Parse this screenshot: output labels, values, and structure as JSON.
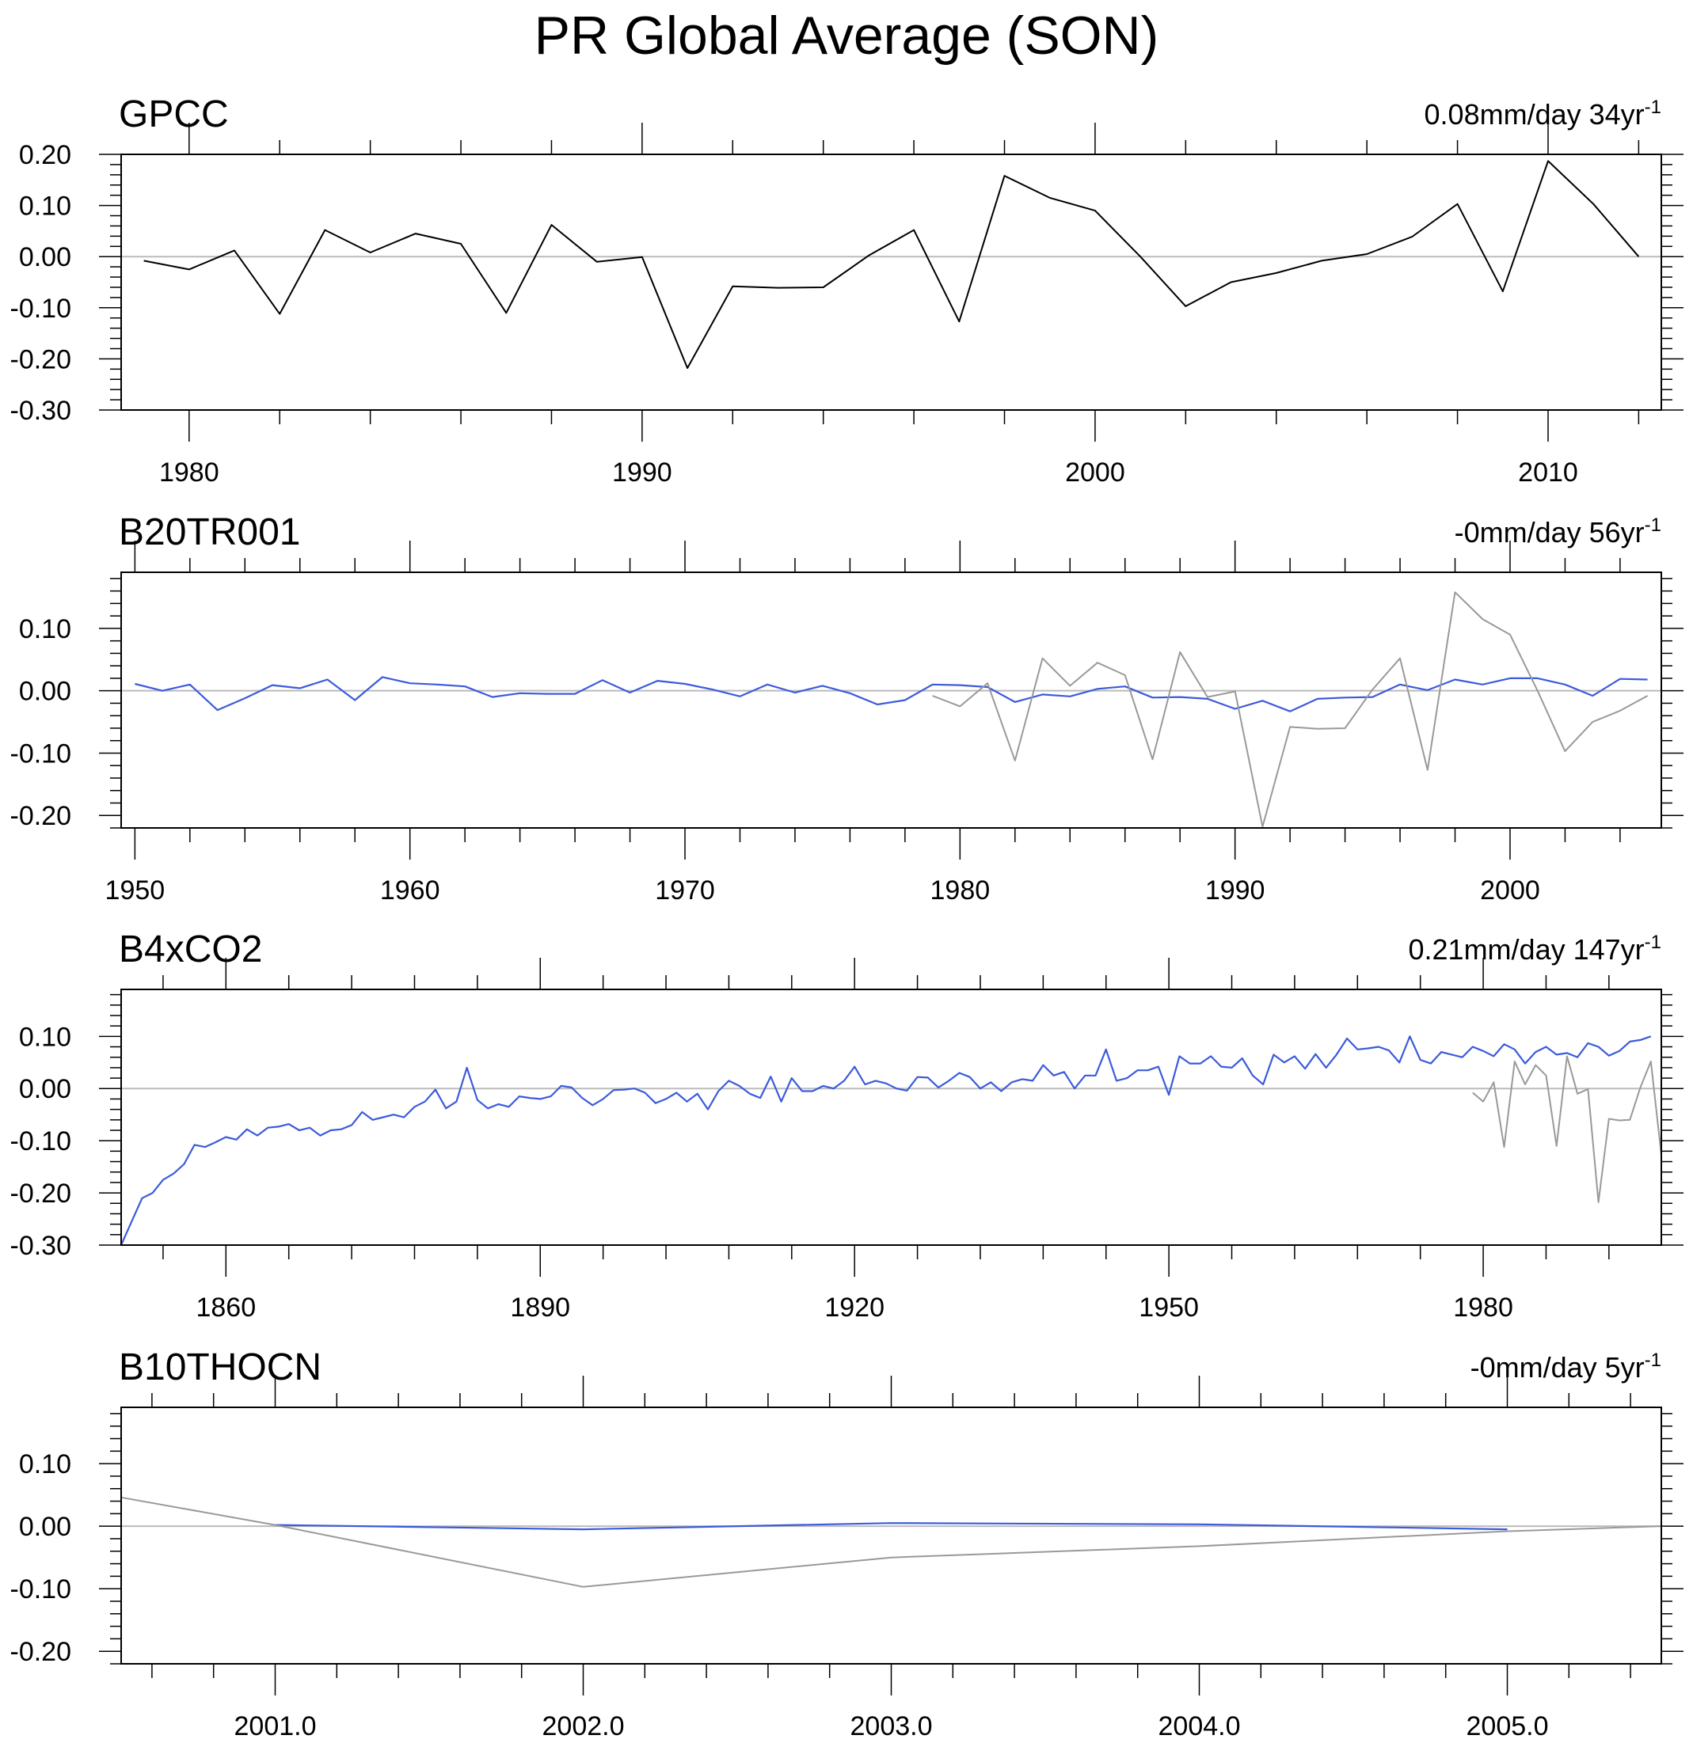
{
  "title": "PR Global Average (SON)",
  "colors": {
    "obs": "#000000",
    "obs_overlay": "#999999",
    "model": "#3b5bdb",
    "zero_line": "#bbbbbb",
    "frame": "#000000"
  },
  "chart_data": [
    {
      "type": "line",
      "title": "GPCC",
      "trend_value": "0.08mm/day",
      "trend_period": "34yr",
      "trend_exponent": "-1",
      "xlim": [
        1978.5,
        2012.5
      ],
      "ylim": [
        -0.3,
        0.2
      ],
      "yticks": [
        -0.3,
        -0.2,
        -0.1,
        0.0,
        0.1,
        0.2
      ],
      "ytick_labels": [
        "-0.30",
        "-0.20",
        "-0.10",
        "0.00",
        "0.10",
        "0.20"
      ],
      "xticks_major": [
        1980,
        1990,
        2000,
        2010
      ],
      "xtick_labels": [
        "1980",
        "1990",
        "2000",
        "2010"
      ],
      "series": [
        {
          "role": "obs",
          "x_start": 1979,
          "values": [
            -0.008,
            -0.025,
            0.012,
            -0.112,
            0.052,
            0.008,
            0.045,
            0.025,
            -0.11,
            0.062,
            -0.01,
            -0.001,
            -0.218,
            -0.058,
            -0.061,
            -0.06,
            0.002,
            0.052,
            -0.127,
            0.158,
            0.115,
            0.09,
            0.0,
            -0.097,
            -0.05,
            -0.032,
            -0.008,
            0.005,
            0.039,
            0.103,
            -0.068,
            0.187,
            0.103,
            0.0
          ]
        }
      ]
    },
    {
      "type": "line",
      "title": "B20TR001",
      "trend_value": "-0mm/day",
      "trend_period": "56yr",
      "trend_exponent": "-1",
      "xlim": [
        1949.5,
        2005.5
      ],
      "ylim": [
        -0.22,
        0.19
      ],
      "yticks": [
        -0.2,
        -0.1,
        0.0,
        0.1
      ],
      "ytick_labels": [
        "-0.20",
        "-0.10",
        "0.00",
        "0.10"
      ],
      "xticks_major": [
        1950,
        1960,
        1970,
        1980,
        1990,
        2000
      ],
      "xtick_labels": [
        "1950",
        "1960",
        "1970",
        "1980",
        "1990",
        "2000"
      ],
      "series": [
        {
          "role": "model",
          "x_start": 1950,
          "values": [
            0.011,
            0.0,
            0.01,
            -0.031,
            -0.012,
            0.009,
            0.004,
            0.018,
            -0.015,
            0.022,
            0.012,
            0.01,
            0.007,
            -0.01,
            -0.004,
            -0.005,
            -0.005,
            0.017,
            -0.003,
            0.016,
            0.011,
            0.002,
            -0.009,
            0.01,
            -0.003,
            0.008,
            -0.004,
            -0.022,
            -0.015,
            0.01,
            0.009,
            0.006,
            -0.018,
            -0.006,
            -0.009,
            0.003,
            0.007,
            -0.011,
            -0.01,
            -0.013,
            -0.029,
            -0.016,
            -0.033,
            -0.013,
            -0.011,
            -0.01,
            0.01,
            0.001,
            0.018,
            0.01,
            0.02,
            0.02,
            0.01,
            -0.008,
            0.019,
            0.018
          ]
        },
        {
          "role": "obs_overlay",
          "x_start": 1979,
          "values": [
            -0.008,
            -0.025,
            0.012,
            -0.112,
            0.052,
            0.008,
            0.045,
            0.025,
            -0.11,
            0.062,
            -0.01,
            -0.001,
            -0.218,
            -0.058,
            -0.061,
            -0.06,
            0.002,
            0.052,
            -0.127,
            0.158,
            0.115,
            0.09,
            0.0,
            -0.097,
            -0.05,
            -0.032,
            -0.008,
            0.005
          ]
        }
      ]
    },
    {
      "type": "line",
      "title": "B4xCO2",
      "trend_value": "0.21mm/day",
      "trend_period": "147yr",
      "trend_exponent": "-1",
      "xlim": [
        1850,
        1997
      ],
      "ylim": [
        -0.3,
        0.19
      ],
      "yticks": [
        -0.3,
        -0.2,
        -0.1,
        0.0,
        0.1
      ],
      "ytick_labels": [
        "-0.30",
        "-0.20",
        "-0.10",
        "0.00",
        "0.10"
      ],
      "xticks_major": [
        1860,
        1890,
        1920,
        1950,
        1980
      ],
      "xtick_labels": [
        "1860",
        "1890",
        "1920",
        "1950",
        "1980"
      ],
      "series": [
        {
          "role": "model",
          "x_start": 1850,
          "values": [
            -0.3,
            -0.255,
            -0.21,
            -0.2,
            -0.175,
            -0.163,
            -0.145,
            -0.108,
            -0.112,
            -0.103,
            -0.093,
            -0.098,
            -0.078,
            -0.09,
            -0.075,
            -0.073,
            -0.068,
            -0.08,
            -0.075,
            -0.09,
            -0.08,
            -0.078,
            -0.07,
            -0.045,
            -0.06,
            -0.055,
            -0.05,
            -0.055,
            -0.035,
            -0.025,
            -0.002,
            -0.038,
            -0.025,
            0.04,
            -0.022,
            -0.038,
            -0.03,
            -0.035,
            -0.015,
            -0.018,
            -0.02,
            -0.015,
            0.005,
            0.002,
            -0.018,
            -0.032,
            -0.02,
            -0.003,
            -0.002,
            0.0,
            -0.008,
            -0.028,
            -0.02,
            -0.008,
            -0.025,
            -0.01,
            -0.04,
            -0.005,
            0.015,
            0.005,
            -0.01,
            -0.018,
            0.023,
            -0.025,
            0.02,
            -0.005,
            -0.005,
            0.005,
            0.0,
            0.015,
            0.042,
            0.008,
            0.015,
            0.01,
            0.0,
            -0.004,
            0.022,
            0.021,
            0.002,
            0.015,
            0.03,
            0.022,
            0.0,
            0.012,
            -0.005,
            0.012,
            0.018,
            0.015,
            0.045,
            0.025,
            0.032,
            0.0,
            0.025,
            0.025,
            0.075,
            0.015,
            0.02,
            0.035,
            0.035,
            0.042,
            -0.012,
            0.062,
            0.048,
            0.048,
            0.062,
            0.042,
            0.04,
            0.058,
            0.025,
            0.008,
            0.065,
            0.05,
            0.062,
            0.038,
            0.066,
            0.04,
            0.065,
            0.096,
            0.075,
            0.077,
            0.08,
            0.073,
            0.05,
            0.1,
            0.055,
            0.048,
            0.07,
            0.065,
            0.06,
            0.08,
            0.072,
            0.062,
            0.085,
            0.075,
            0.048,
            0.07,
            0.08,
            0.065,
            0.068,
            0.06,
            0.087,
            0.08,
            0.063,
            0.072,
            0.09,
            0.093,
            0.1
          ]
        },
        {
          "role": "obs_overlay",
          "x_start": 1979,
          "values": [
            -0.008,
            -0.025,
            0.012,
            -0.112,
            0.052,
            0.008,
            0.045,
            0.025,
            -0.11,
            0.062,
            -0.01,
            -0.001,
            -0.218,
            -0.058,
            -0.061,
            -0.06,
            0.002,
            0.052,
            -0.127
          ]
        }
      ]
    },
    {
      "type": "line",
      "title": "B10THOCN",
      "trend_value": "-0mm/day",
      "trend_period": "5yr",
      "trend_exponent": "-1",
      "xlim": [
        2000.5,
        2005.5
      ],
      "ylim": [
        -0.22,
        0.19
      ],
      "yticks": [
        -0.2,
        -0.1,
        0.0,
        0.1
      ],
      "ytick_labels": [
        "-0.20",
        "-0.10",
        "0.00",
        "0.10"
      ],
      "xticks_major": [
        2001,
        2002,
        2003,
        2004,
        2005
      ],
      "xtick_labels": [
        "2001.0",
        "2002.0",
        "2003.0",
        "2004.0",
        "2005.0"
      ],
      "series": [
        {
          "role": "model",
          "x": [
            2001,
            2002,
            2003,
            2004,
            2005
          ],
          "values": [
            0.002,
            -0.005,
            0.005,
            0.003,
            -0.005
          ]
        },
        {
          "role": "obs_overlay",
          "x": [
            2000.5,
            2001,
            2002,
            2003,
            2004,
            2005,
            2005.5
          ],
          "values": [
            0.046,
            0.002,
            -0.097,
            -0.05,
            -0.032,
            -0.008,
            0.0
          ]
        }
      ]
    }
  ]
}
